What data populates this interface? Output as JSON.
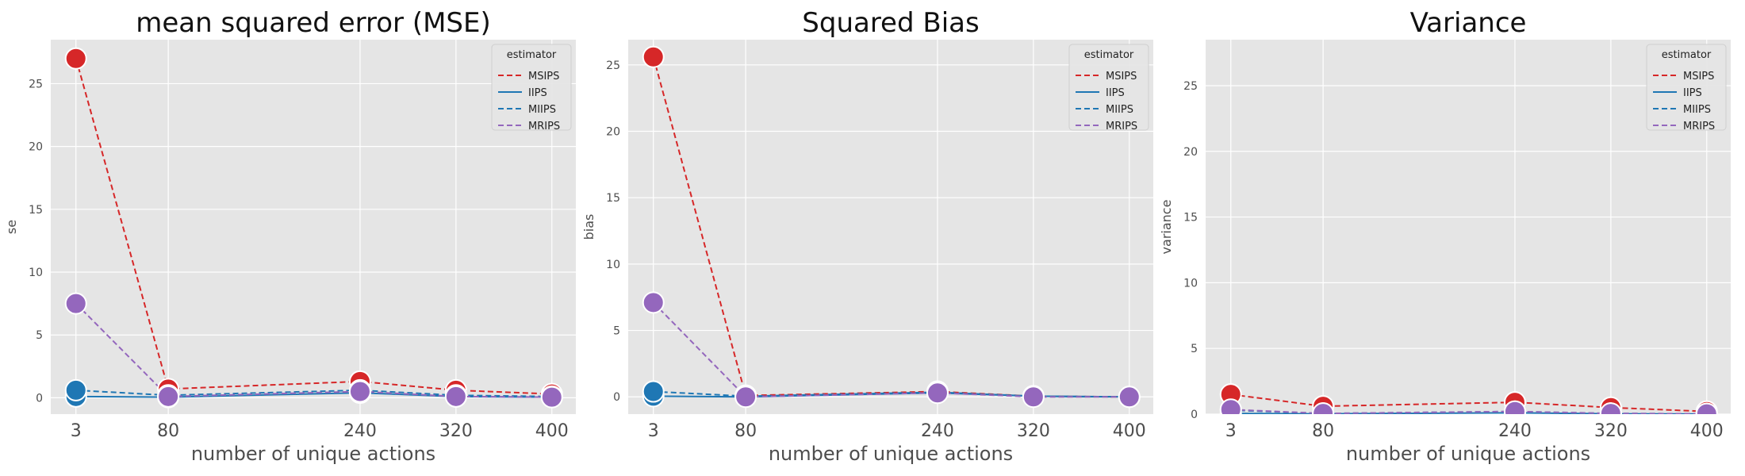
{
  "chart_data": [
    {
      "type": "line",
      "title": "mean squared error (MSE)",
      "xlabel": "number of unique actions",
      "ylabel": "se",
      "categories": [
        "3",
        "80",
        "240",
        "320",
        "400"
      ],
      "x": [
        3,
        80,
        240,
        320,
        400
      ],
      "xlim": [
        -18,
        420
      ],
      "ylim": [
        -1.3,
        28.5
      ],
      "yticks": [
        0,
        5,
        10,
        15,
        20,
        25
      ],
      "grid": true,
      "legend": {
        "title": "estimator",
        "placement": "top-right"
      },
      "series": [
        {
          "name": "MSIPS",
          "color": "#d62728",
          "dash": "dashed",
          "values": [
            27.0,
            0.7,
            1.3,
            0.6,
            0.3
          ]
        },
        {
          "name": "IIPS",
          "color": "#1f77b4",
          "dash": "solid",
          "values": [
            0.1,
            0.05,
            0.4,
            0.1,
            0.05
          ]
        },
        {
          "name": "MIIPS",
          "color": "#1f77b4",
          "dash": "dashed",
          "values": [
            0.6,
            0.2,
            0.6,
            0.2,
            0.1
          ]
        },
        {
          "name": "MRIPS",
          "color": "#9467bd",
          "dash": "dashed",
          "values": [
            7.5,
            0.1,
            0.5,
            0.1,
            0.05
          ]
        }
      ]
    },
    {
      "type": "line",
      "title": "Squared Bias",
      "xlabel": "number of unique actions",
      "ylabel": "bias",
      "categories": [
        "3",
        "80",
        "240",
        "320",
        "400"
      ],
      "x": [
        3,
        80,
        240,
        320,
        400
      ],
      "xlim": [
        -18,
        420
      ],
      "ylim": [
        -1.3,
        26.9
      ],
      "yticks": [
        0,
        5,
        10,
        15,
        20,
        25
      ],
      "grid": true,
      "legend": {
        "title": "estimator",
        "placement": "top-right"
      },
      "series": [
        {
          "name": "MSIPS",
          "color": "#d62728",
          "dash": "dashed",
          "values": [
            25.6,
            0.1,
            0.4,
            0.05,
            0.0
          ]
        },
        {
          "name": "IIPS",
          "color": "#1f77b4",
          "dash": "solid",
          "values": [
            0.05,
            0.0,
            0.3,
            0.05,
            0.0
          ]
        },
        {
          "name": "MIIPS",
          "color": "#1f77b4",
          "dash": "dashed",
          "values": [
            0.4,
            0.05,
            0.35,
            0.05,
            0.0
          ]
        },
        {
          "name": "MRIPS",
          "color": "#9467bd",
          "dash": "dashed",
          "values": [
            7.1,
            0.0,
            0.3,
            0.0,
            0.0
          ]
        }
      ]
    },
    {
      "type": "line",
      "title": "Variance",
      "xlabel": "number of unique actions",
      "ylabel": "variance",
      "categories": [
        "3",
        "80",
        "240",
        "320",
        "400"
      ],
      "x": [
        3,
        80,
        240,
        320,
        400
      ],
      "xlim": [
        -18,
        420
      ],
      "ylim": [
        0,
        28.5
      ],
      "yticks": [
        0,
        5,
        10,
        15,
        20,
        25
      ],
      "grid": true,
      "legend": {
        "title": "estimator",
        "placement": "top-right"
      },
      "series": [
        {
          "name": "MSIPS",
          "color": "#d62728",
          "dash": "dashed",
          "values": [
            1.5,
            0.6,
            0.9,
            0.5,
            0.2
          ]
        },
        {
          "name": "IIPS",
          "color": "#1f77b4",
          "dash": "solid",
          "values": [
            0.05,
            0.02,
            0.1,
            0.02,
            0.01
          ]
        },
        {
          "name": "MIIPS",
          "color": "#1f77b4",
          "dash": "dashed",
          "values": [
            0.3,
            0.05,
            0.2,
            0.05,
            0.02
          ]
        },
        {
          "name": "MRIPS",
          "color": "#9467bd",
          "dash": "dashed",
          "values": [
            0.35,
            0.05,
            0.2,
            0.05,
            0.02
          ]
        }
      ]
    }
  ]
}
